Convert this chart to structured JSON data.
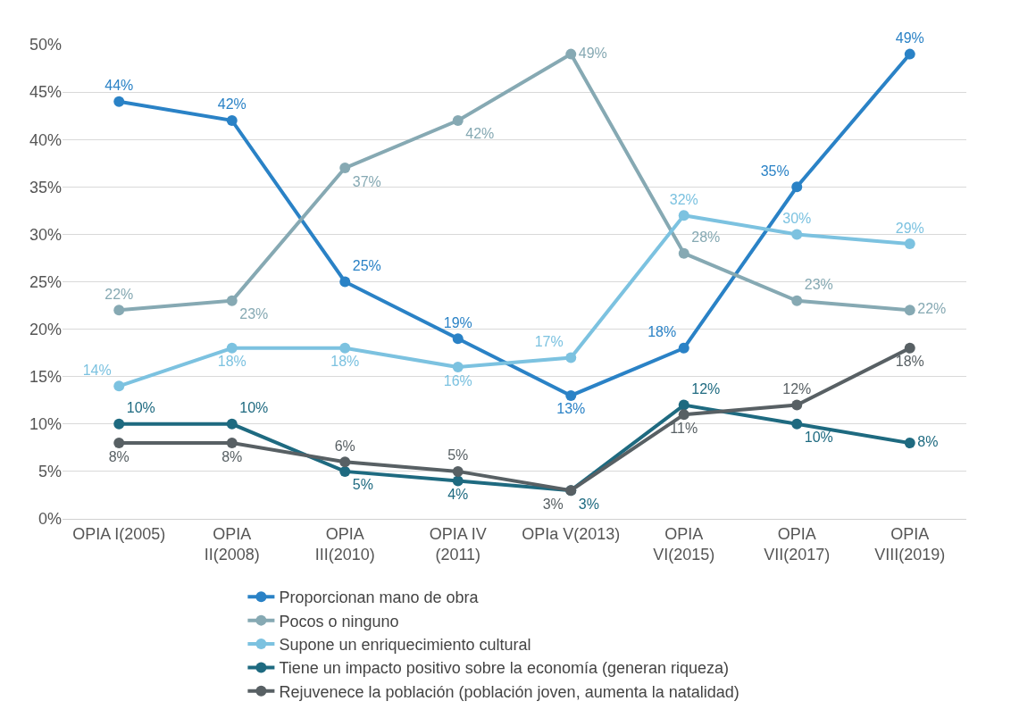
{
  "chart_data": {
    "type": "line",
    "categories": [
      "OPIA I(2005)",
      "OPIA II(2008)",
      "OPIA III(2010)",
      "OPIA IV (2011)",
      "OPIa V(2013)",
      "OPIA VI(2015)",
      "OPIA VII(2017)",
      "OPIA VIII(2019)"
    ],
    "series": [
      {
        "name": "Proporcionan mano de obra",
        "color": "#2a82c6",
        "values": [
          44,
          42,
          25,
          19,
          13,
          18,
          35,
          49
        ],
        "value_labels": [
          "44%",
          "42%",
          "25%",
          "19%",
          "13%",
          "18%",
          "35%",
          "49%"
        ]
      },
      {
        "name": "Pocos o ninguno",
        "color": "#86a9b3",
        "values": [
          22,
          23,
          37,
          42,
          49,
          28,
          23,
          22
        ],
        "value_labels": [
          "22%",
          "23%",
          "37%",
          "42%",
          "49%",
          "28%",
          "23%",
          "22%"
        ]
      },
      {
        "name": "Supone un enriquecimiento cultural",
        "color": "#7cc2e0",
        "values": [
          14,
          18,
          18,
          16,
          17,
          32,
          30,
          29
        ],
        "value_labels": [
          "14%",
          "18%",
          "18%",
          "16%",
          "17%",
          "32%",
          "30%",
          "29%"
        ]
      },
      {
        "name": "Tiene un impacto positivo sobre la economía (generan riqueza)",
        "color": "#1e6a80",
        "values": [
          10,
          10,
          5,
          4,
          3,
          12,
          10,
          8
        ],
        "value_labels": [
          "10%",
          "10%",
          "5%",
          "4%",
          "3%",
          "12%",
          "10%",
          "8%"
        ]
      },
      {
        "name": "Rejuvenece la población (población joven, aumenta la natalidad)",
        "color": "#586064",
        "values": [
          8,
          8,
          6,
          5,
          3,
          11,
          12,
          18
        ],
        "value_labels": [
          "8%",
          "8%",
          "6%",
          "5%",
          "3%",
          "11%",
          "12%",
          "18%"
        ]
      }
    ],
    "ylim": [
      0,
      50
    ],
    "yticks": [
      {
        "value": 0,
        "label": "0%"
      },
      {
        "value": 5,
        "label": "5%"
      },
      {
        "value": 10,
        "label": "10%"
      },
      {
        "value": 15,
        "label": "15%"
      },
      {
        "value": 20,
        "label": "20%"
      },
      {
        "value": 25,
        "label": "25%"
      },
      {
        "value": 30,
        "label": "30%"
      },
      {
        "value": 35,
        "label": "35%"
      },
      {
        "value": 40,
        "label": "40%"
      },
      {
        "value": 45,
        "label": "45%"
      },
      {
        "value": 50,
        "label": "50%"
      }
    ],
    "grid": "y",
    "legend": "bottom",
    "marker": "circle",
    "line_style": "solid"
  }
}
